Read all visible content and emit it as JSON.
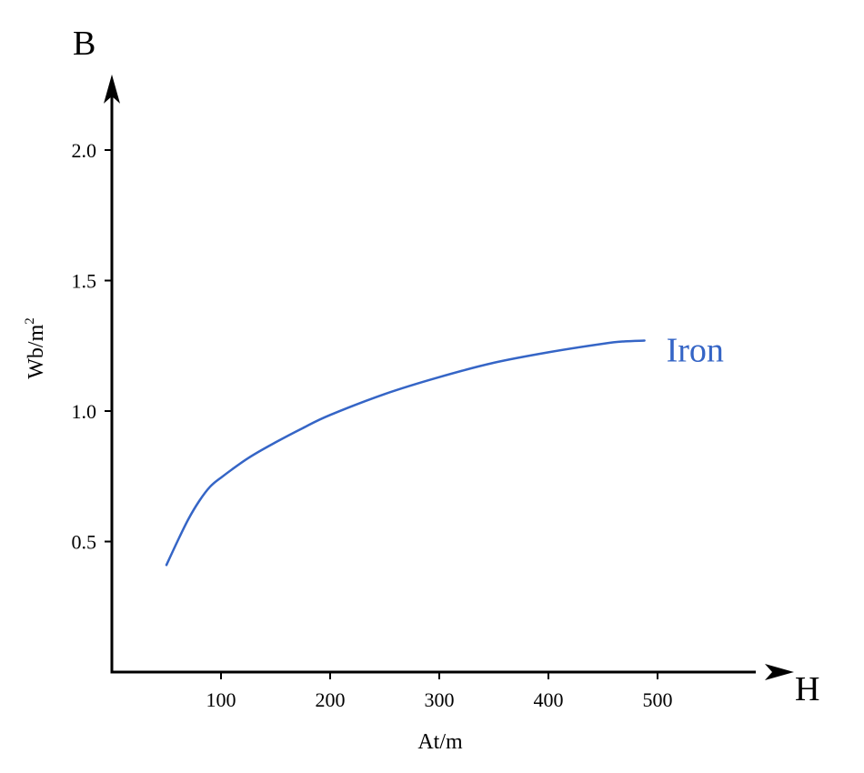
{
  "chart_data": {
    "type": "line",
    "x_axis": {
      "letter": "H",
      "unit": "At/m",
      "ticks": [
        100,
        200,
        300,
        400,
        500
      ],
      "range": [
        0,
        590
      ]
    },
    "y_axis": {
      "letter": "B",
      "unit_base": "Wb/m",
      "unit_sup": "2",
      "ticks": [
        0.5,
        1.0,
        1.5,
        2.0
      ],
      "tick_labels": [
        "0.5",
        "1.0",
        "1.5",
        "2.0"
      ],
      "range": [
        0,
        2.22
      ]
    },
    "grid": false,
    "legend": "none",
    "series": [
      {
        "name": "Iron",
        "color": "#3565c6",
        "points": [
          [
            50,
            0.41
          ],
          [
            60,
            0.5
          ],
          [
            70,
            0.585
          ],
          [
            80,
            0.655
          ],
          [
            90,
            0.71
          ],
          [
            100,
            0.745
          ],
          [
            125,
            0.82
          ],
          [
            150,
            0.88
          ],
          [
            175,
            0.935
          ],
          [
            200,
            0.985
          ],
          [
            250,
            1.065
          ],
          [
            300,
            1.13
          ],
          [
            350,
            1.185
          ],
          [
            400,
            1.225
          ],
          [
            450,
            1.258
          ],
          [
            470,
            1.267
          ],
          [
            488,
            1.27
          ]
        ]
      }
    ]
  }
}
